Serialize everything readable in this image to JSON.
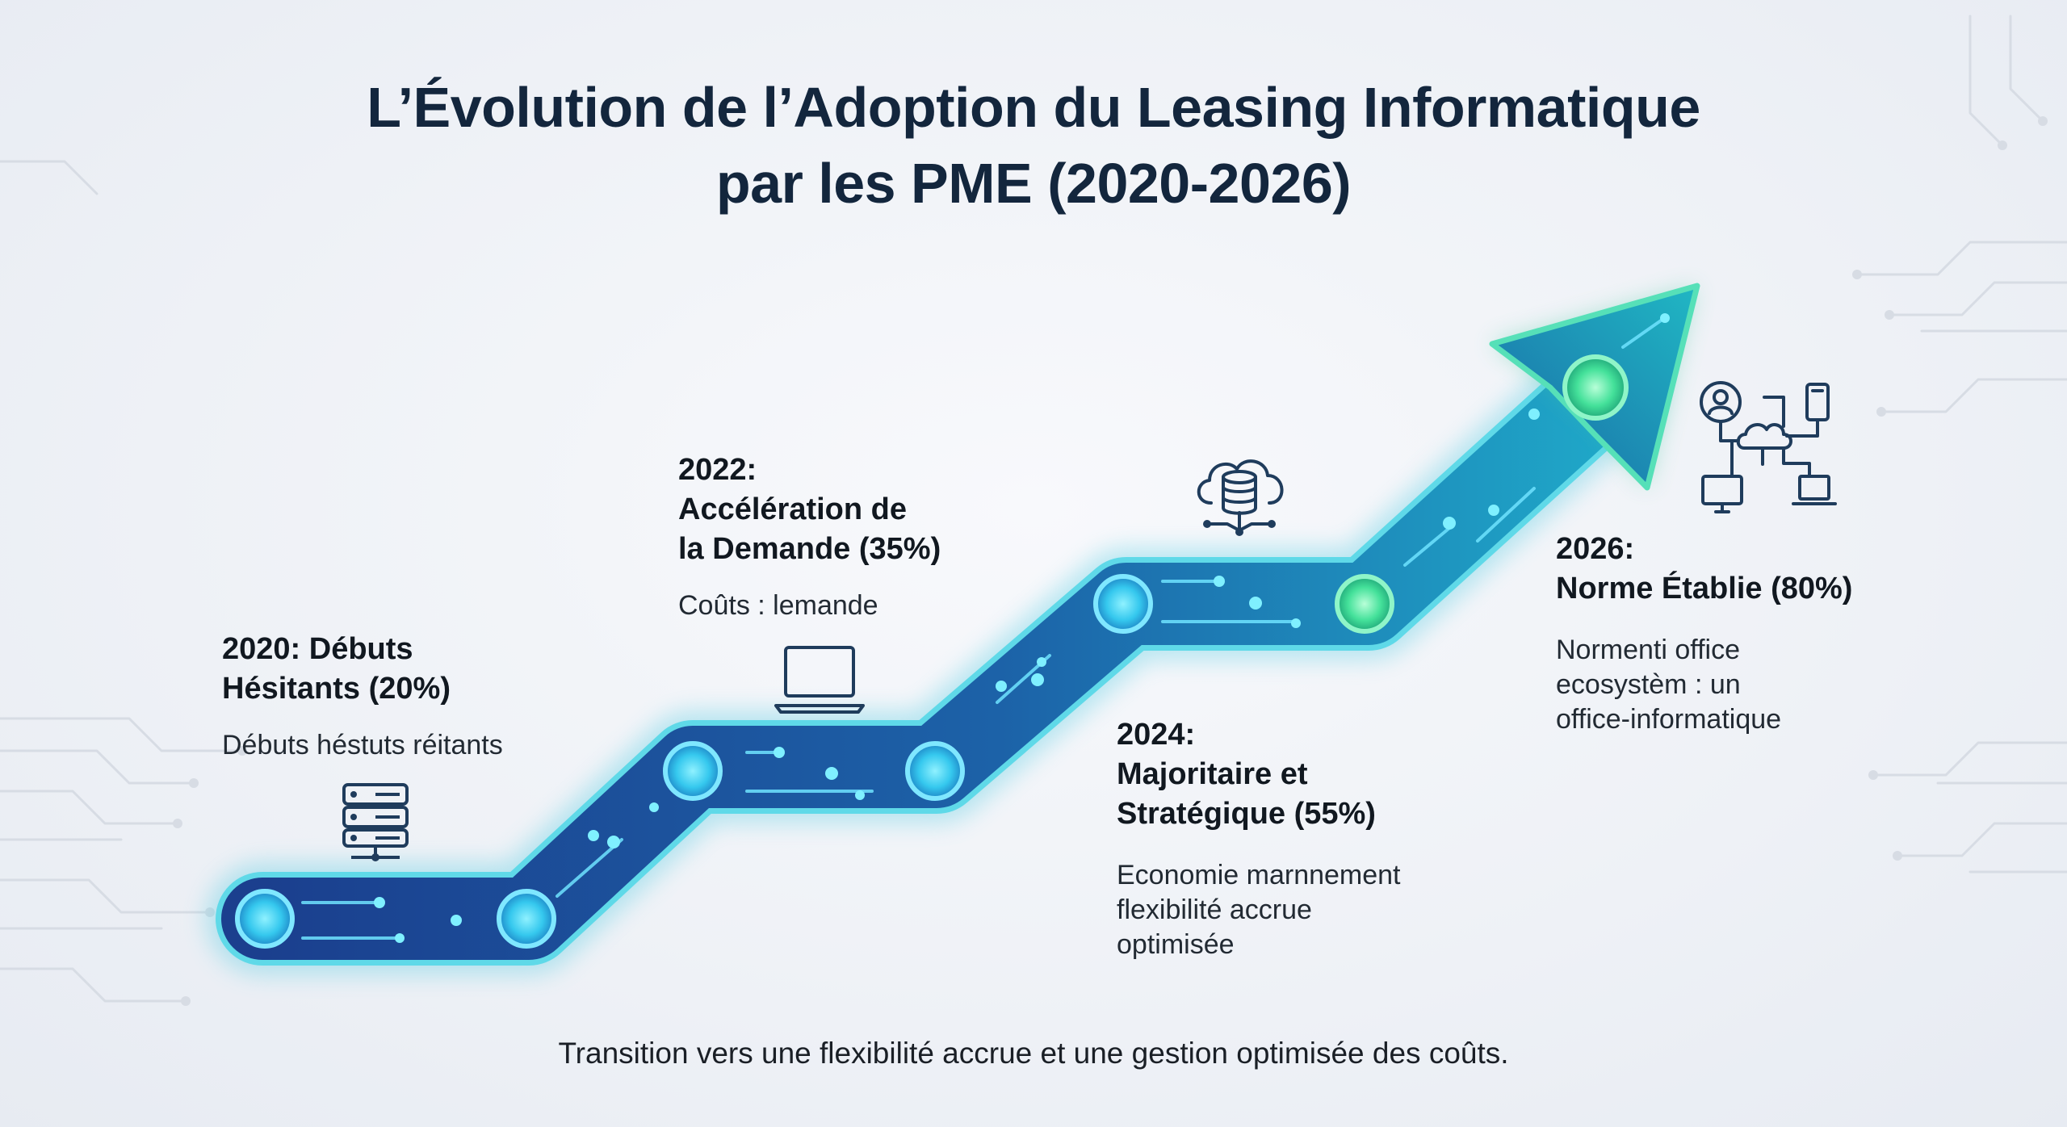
{
  "title": {
    "line1": "L’Évolution de l’Adoption du Leasing Informatique",
    "line2": "par les PME (2020-2026)"
  },
  "stages": [
    {
      "year_title": "2020: Débuts Hésitants (20%)",
      "line1": "2020: Débuts",
      "line2": "Hésitants (20%)",
      "description": "Débuts héstuts réitants",
      "icon": "server-icon",
      "adoption_percent": 20
    },
    {
      "year": "2022:",
      "title_line1": "Accélération de",
      "title_line2": "la Demande (35%)",
      "description": "Coûts : lemande",
      "icon": "laptop-icon",
      "adoption_percent": 35
    },
    {
      "year": "2024:",
      "title_line1": "Majoritaire et",
      "title_line2": "Stratégique (55%)",
      "desc_lines": [
        "Economie marnnement",
        "flexibilité accrue",
        "optimisée"
      ],
      "icon": "cloud-database-icon",
      "adoption_percent": 55
    },
    {
      "year": "2026:",
      "title_line1": "Norme Établie (80%)",
      "desc_lines": [
        "Normenti office",
        "ecosystèm : un",
        "office-informatique"
      ],
      "icon": "network-devices-icon",
      "adoption_percent": 80
    }
  ],
  "footer": "Transition vers une flexibilité accrue et une gestion optimisée des coûts.",
  "colors": {
    "title": "#13263d",
    "path_dark": "#1b3f8e",
    "path_light": "#1fa7c8",
    "glow": "#47e0c0",
    "node": "#4fd6f0",
    "icon_stroke": "#1f3c5c"
  }
}
